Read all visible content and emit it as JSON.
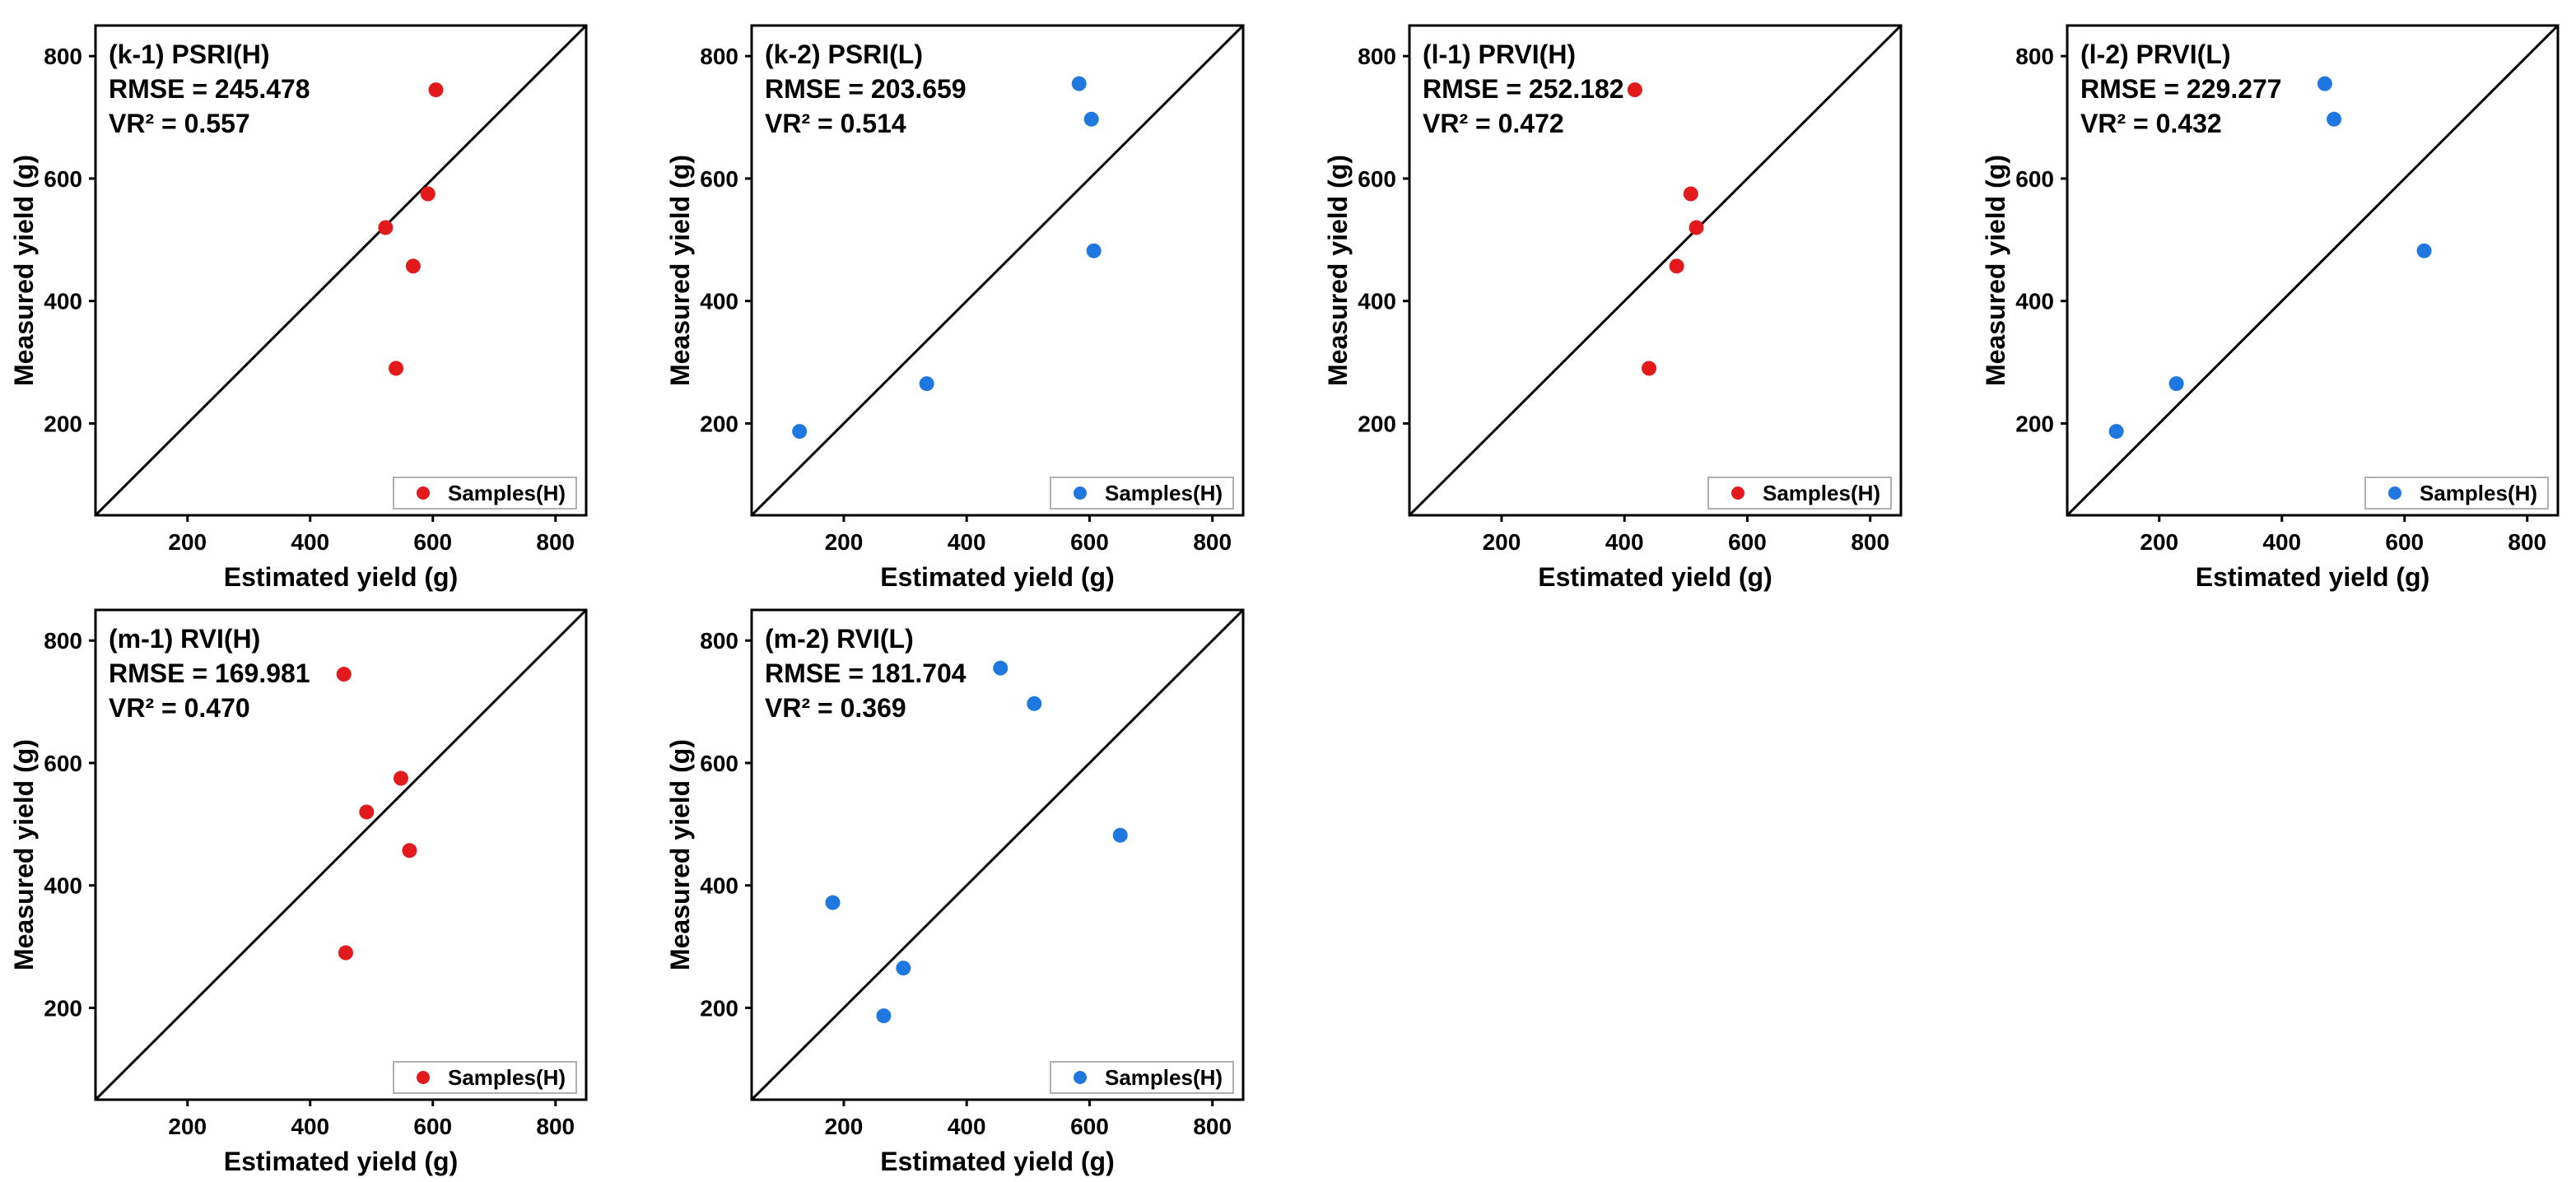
{
  "chart_data": [
    {
      "type": "scatter",
      "title": "(k-1) PSRI(H)",
      "rmse_text": "RMSE = 245.478",
      "vr2_text": "VR² = 0.557",
      "xlabel": "Estimated yield (g)",
      "ylabel": "Measured yield (g)",
      "xlim": [
        50,
        850
      ],
      "ylim": [
        50,
        850
      ],
      "xticks": [
        200,
        400,
        600,
        800
      ],
      "yticks": [
        200,
        400,
        600,
        800
      ],
      "reference_line": "1:1",
      "legend": {
        "label": "Samples(H)",
        "position": "bottom-right"
      },
      "color": "#e31a1c",
      "series": [
        {
          "name": "Samples(H)",
          "points": [
            [
              605,
              745
            ],
            [
              592,
              575
            ],
            [
              523,
              520
            ],
            [
              568,
              457
            ],
            [
              540,
              290
            ]
          ]
        }
      ]
    },
    {
      "type": "scatter",
      "title": "(k-2) PSRI(L)",
      "rmse_text": "RMSE = 203.659",
      "vr2_text": "VR² = 0.514",
      "xlabel": "Estimated yield (g)",
      "ylabel": "Measured yield (g)",
      "xlim": [
        50,
        850
      ],
      "ylim": [
        50,
        850
      ],
      "xticks": [
        200,
        400,
        600,
        800
      ],
      "yticks": [
        200,
        400,
        600,
        800
      ],
      "reference_line": "1:1",
      "legend": {
        "label": "Samples(H)",
        "position": "bottom-right"
      },
      "color": "#1f78e0",
      "series": [
        {
          "name": "Samples(H)",
          "points": [
            [
              583,
              755
            ],
            [
              603,
              697
            ],
            [
              607,
              482
            ],
            [
              335,
              265
            ],
            [
              128,
              187
            ]
          ]
        }
      ]
    },
    {
      "type": "scatter",
      "title": "(l-1) PRVI(H)",
      "rmse_text": "RMSE = 252.182",
      "vr2_text": "VR² = 0.472",
      "xlabel": "Estimated yield (g)",
      "ylabel": "Measured yield (g)",
      "xlim": [
        50,
        850
      ],
      "ylim": [
        50,
        850
      ],
      "xticks": [
        200,
        400,
        600,
        800
      ],
      "yticks": [
        200,
        400,
        600,
        800
      ],
      "reference_line": "1:1",
      "legend": {
        "label": "Samples(H)",
        "position": "bottom-right"
      },
      "color": "#e31a1c",
      "series": [
        {
          "name": "Samples(H)",
          "points": [
            [
              417,
              745
            ],
            [
              508,
              575
            ],
            [
              517,
              520
            ],
            [
              485,
              457
            ],
            [
              440,
              290
            ]
          ]
        }
      ]
    },
    {
      "type": "scatter",
      "title": "(l-2) PRVI(L)",
      "rmse_text": "RMSE = 229.277",
      "vr2_text": "VR² = 0.432",
      "xlabel": "Estimated yield (g)",
      "ylabel": "Measured yield (g)",
      "xlim": [
        50,
        850
      ],
      "ylim": [
        50,
        850
      ],
      "xticks": [
        200,
        400,
        600,
        800
      ],
      "yticks": [
        200,
        400,
        600,
        800
      ],
      "reference_line": "1:1",
      "legend": {
        "label": "Samples(H)",
        "position": "bottom-right"
      },
      "color": "#1f78e0",
      "series": [
        {
          "name": "Samples(H)",
          "points": [
            [
              470,
              755
            ],
            [
              485,
              697
            ],
            [
              632,
              482
            ],
            [
              228,
              265
            ],
            [
              130,
              187
            ]
          ]
        }
      ]
    },
    {
      "type": "scatter",
      "title": "(m-1) RVI(H)",
      "rmse_text": "RMSE = 169.981",
      "vr2_text": "VR² = 0.470",
      "xlabel": "Estimated yield (g)",
      "ylabel": "Measured yield (g)",
      "xlim": [
        50,
        850
      ],
      "ylim": [
        50,
        850
      ],
      "xticks": [
        200,
        400,
        600,
        800
      ],
      "yticks": [
        200,
        400,
        600,
        800
      ],
      "reference_line": "1:1",
      "legend": {
        "label": "Samples(H)",
        "position": "bottom-right"
      },
      "color": "#e31a1c",
      "series": [
        {
          "name": "Samples(H)",
          "points": [
            [
              455,
              745
            ],
            [
              548,
              575
            ],
            [
              492,
              520
            ],
            [
              562,
              457
            ],
            [
              458,
              290
            ]
          ]
        }
      ]
    },
    {
      "type": "scatter",
      "title": "(m-2) RVI(L)",
      "rmse_text": "RMSE = 181.704",
      "vr2_text": "VR² = 0.369",
      "xlabel": "Estimated yield (g)",
      "ylabel": "Measured yield (g)",
      "xlim": [
        50,
        850
      ],
      "ylim": [
        50,
        850
      ],
      "xticks": [
        200,
        400,
        600,
        800
      ],
      "yticks": [
        200,
        400,
        600,
        800
      ],
      "reference_line": "1:1",
      "legend": {
        "label": "Samples(H)",
        "position": "bottom-right"
      },
      "color": "#1f78e0",
      "series": [
        {
          "name": "Samples(H)",
          "points": [
            [
              455,
              755
            ],
            [
              510,
              697
            ],
            [
              650,
              482
            ],
            [
              182,
              372
            ],
            [
              297,
              265
            ],
            [
              265,
              187
            ]
          ]
        }
      ]
    }
  ]
}
